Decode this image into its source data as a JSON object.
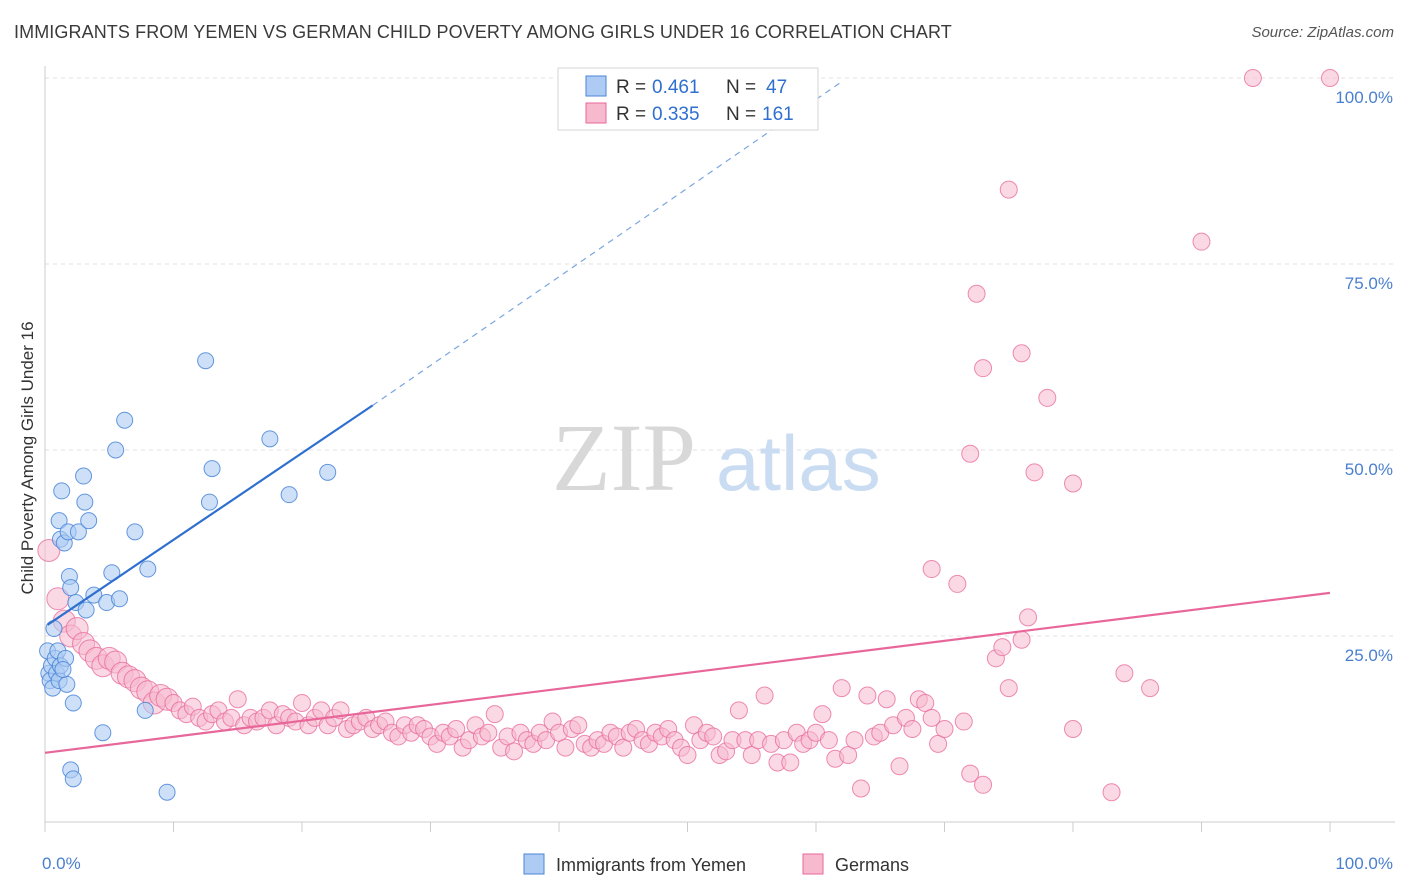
{
  "title": "IMMIGRANTS FROM YEMEN VS GERMAN CHILD POVERTY AMONG GIRLS UNDER 16 CORRELATION CHART",
  "source": "Source: ZipAtlas.com",
  "watermark": {
    "zip": "ZIP",
    "atlas": "atlas"
  },
  "colors": {
    "blue": "#4a86d8",
    "blue_fill": "#aeccf3",
    "pink": "#e8679a",
    "pink_fill": "#f6b9cd",
    "tick": "#4a7fcf"
  },
  "legend": {
    "r_label": "R =",
    "n_label": "N =",
    "rows": [
      {
        "r": "0.461",
        "n": "47"
      },
      {
        "r": "0.335",
        "n": "161"
      }
    ]
  },
  "chart_data": {
    "type": "scatter",
    "title": "IMMIGRANTS FROM YEMEN VS GERMAN CHILD POVERTY AMONG GIRLS UNDER 16 CORRELATION CHART",
    "xlabel": "",
    "ylabel": "Child Poverty Among Girls Under 16",
    "xlim": [
      0,
      100
    ],
    "ylim": [
      0,
      100
    ],
    "x_tick_labels": [
      "0.0%",
      "100.0%"
    ],
    "y_tick_labels": [
      "25.0%",
      "50.0%",
      "75.0%",
      "100.0%"
    ],
    "y_ticks": [
      25,
      50,
      75,
      100
    ],
    "grid": true,
    "legend_placement": "top-center",
    "series": [
      {
        "name": "Immigrants from Yemen",
        "color": "#4a86d8",
        "trend": {
          "x0": 0.2,
          "y0": 26.5,
          "x1": 25.5,
          "y1": 56.0,
          "x_dash_end": 62.0,
          "y_dash_end": 99.5
        },
        "points": [
          [
            0.2,
            23
          ],
          [
            0.3,
            20
          ],
          [
            0.4,
            19
          ],
          [
            0.5,
            21
          ],
          [
            0.6,
            18
          ],
          [
            0.8,
            22
          ],
          [
            0.9,
            20
          ],
          [
            1.0,
            23
          ],
          [
            1.1,
            19
          ],
          [
            1.2,
            21
          ],
          [
            0.7,
            26
          ],
          [
            1.1,
            40.5
          ],
          [
            1.2,
            38
          ],
          [
            1.3,
            44.5
          ],
          [
            1.5,
            37.5
          ],
          [
            1.6,
            22
          ],
          [
            1.7,
            18.5
          ],
          [
            1.8,
            39
          ],
          [
            1.9,
            33
          ],
          [
            2.0,
            31.5
          ],
          [
            2.2,
            16
          ],
          [
            2.4,
            29.5
          ],
          [
            2.6,
            39
          ],
          [
            3.0,
            46.5
          ],
          [
            3.1,
            43
          ],
          [
            3.2,
            28.5
          ],
          [
            3.4,
            40.5
          ],
          [
            3.8,
            30.5
          ],
          [
            4.5,
            12
          ],
          [
            4.8,
            29.5
          ],
          [
            5.2,
            33.5
          ],
          [
            5.5,
            50
          ],
          [
            5.8,
            30
          ],
          [
            6.2,
            54
          ],
          [
            7.0,
            39
          ],
          [
            7.8,
            15
          ],
          [
            8.0,
            34
          ],
          [
            9.5,
            4
          ],
          [
            12.5,
            62
          ],
          [
            12.8,
            43
          ],
          [
            13.0,
            47.5
          ],
          [
            17.5,
            51.5
          ],
          [
            19,
            44
          ],
          [
            22,
            47
          ],
          [
            2,
            7
          ],
          [
            2.2,
            5.8
          ],
          [
            1.4,
            20.5
          ]
        ]
      },
      {
        "name": "Germans",
        "color": "#e8679a",
        "trend": {
          "x0": 0,
          "y0": 9.3,
          "x1": 100,
          "y1": 30.8
        },
        "points": [
          [
            0.3,
            36.5
          ],
          [
            1,
            30
          ],
          [
            1.5,
            27
          ],
          [
            2,
            25
          ],
          [
            2.5,
            26
          ],
          [
            3,
            24
          ],
          [
            3.5,
            23
          ],
          [
            4,
            22
          ],
          [
            4.5,
            21
          ],
          [
            5,
            22
          ],
          [
            5.5,
            21.5
          ],
          [
            6,
            20
          ],
          [
            6.5,
            19.5
          ],
          [
            7,
            19
          ],
          [
            7.5,
            18
          ],
          [
            8,
            17.5
          ],
          [
            8.5,
            16
          ],
          [
            9,
            17
          ],
          [
            9.5,
            16.5
          ],
          [
            10,
            16
          ],
          [
            10.5,
            15
          ],
          [
            11,
            14.5
          ],
          [
            11.5,
            15.5
          ],
          [
            12,
            14
          ],
          [
            12.5,
            13.5
          ],
          [
            13,
            14.5
          ],
          [
            13.5,
            15
          ],
          [
            14,
            13.5
          ],
          [
            14.5,
            14
          ],
          [
            15,
            16.5
          ],
          [
            15.5,
            13
          ],
          [
            16,
            14
          ],
          [
            16.5,
            13.5
          ],
          [
            17,
            14
          ],
          [
            17.5,
            15
          ],
          [
            18,
            13
          ],
          [
            18.5,
            14.5
          ],
          [
            19,
            14
          ],
          [
            19.5,
            13.5
          ],
          [
            20,
            16
          ],
          [
            20.5,
            13
          ],
          [
            21,
            14
          ],
          [
            21.5,
            15
          ],
          [
            22,
            13
          ],
          [
            22.5,
            14
          ],
          [
            23,
            15
          ],
          [
            23.5,
            12.5
          ],
          [
            24,
            13
          ],
          [
            24.5,
            13.5
          ],
          [
            25,
            14
          ],
          [
            25.5,
            12.5
          ],
          [
            26,
            13
          ],
          [
            26.5,
            13.5
          ],
          [
            27,
            12
          ],
          [
            27.5,
            11.5
          ],
          [
            28,
            13
          ],
          [
            28.5,
            12
          ],
          [
            29,
            13
          ],
          [
            29.5,
            12.5
          ],
          [
            30,
            11.5
          ],
          [
            30.5,
            10.5
          ],
          [
            31,
            12
          ],
          [
            31.5,
            11.5
          ],
          [
            32,
            12.5
          ],
          [
            32.5,
            10
          ],
          [
            33,
            11
          ],
          [
            33.5,
            13
          ],
          [
            34,
            11.5
          ],
          [
            34.5,
            12
          ],
          [
            35,
            14.5
          ],
          [
            35.5,
            10
          ],
          [
            36,
            11.5
          ],
          [
            36.5,
            9.5
          ],
          [
            37,
            12
          ],
          [
            37.5,
            11
          ],
          [
            38,
            10.5
          ],
          [
            38.5,
            12
          ],
          [
            39,
            11
          ],
          [
            39.5,
            13.5
          ],
          [
            40,
            12
          ],
          [
            40.5,
            10
          ],
          [
            41,
            12.5
          ],
          [
            41.5,
            13
          ],
          [
            42,
            10.5
          ],
          [
            42.5,
            10
          ],
          [
            43,
            11
          ],
          [
            43.5,
            10.5
          ],
          [
            44,
            12
          ],
          [
            44.5,
            11.5
          ],
          [
            45,
            10
          ],
          [
            45.5,
            12
          ],
          [
            46,
            12.5
          ],
          [
            46.5,
            11
          ],
          [
            47,
            10.5
          ],
          [
            47.5,
            12
          ],
          [
            48,
            11.5
          ],
          [
            48.5,
            12.5
          ],
          [
            49,
            11
          ],
          [
            49.5,
            10
          ],
          [
            50,
            9
          ],
          [
            50.5,
            13
          ],
          [
            51,
            11
          ],
          [
            51.5,
            12
          ],
          [
            52,
            11.5
          ],
          [
            52.5,
            9
          ],
          [
            53,
            9.5
          ],
          [
            53.5,
            11
          ],
          [
            54,
            15
          ],
          [
            54.5,
            11
          ],
          [
            55,
            9
          ],
          [
            55.5,
            11
          ],
          [
            56,
            17
          ],
          [
            56.5,
            10.5
          ],
          [
            57,
            8
          ],
          [
            57.5,
            11
          ],
          [
            58,
            8
          ],
          [
            58.5,
            12
          ],
          [
            59,
            10.5
          ],
          [
            59.5,
            11
          ],
          [
            60,
            12
          ],
          [
            60.5,
            14.5
          ],
          [
            61,
            11
          ],
          [
            61.5,
            8.5
          ],
          [
            62,
            18
          ],
          [
            62.5,
            9
          ],
          [
            63,
            11
          ],
          [
            63.5,
            4.5
          ],
          [
            64,
            17
          ],
          [
            64.5,
            11.5
          ],
          [
            65,
            12
          ],
          [
            65.5,
            16.5
          ],
          [
            66,
            13
          ],
          [
            66.5,
            7.5
          ],
          [
            67,
            14
          ],
          [
            67.5,
            12.5
          ],
          [
            68,
            16.5
          ],
          [
            68.5,
            16
          ],
          [
            69,
            14
          ],
          [
            69.5,
            10.5
          ],
          [
            70,
            12.5
          ],
          [
            69,
            34
          ],
          [
            71,
            32
          ],
          [
            72,
            6.5
          ],
          [
            73,
            5
          ],
          [
            74,
            22
          ],
          [
            74.5,
            23.5
          ],
          [
            75,
            18
          ],
          [
            76,
            24.5
          ],
          [
            76.5,
            27.5
          ],
          [
            77,
            47
          ],
          [
            78,
            57
          ],
          [
            80,
            12.5
          ],
          [
            80,
            45.5
          ],
          [
            83,
            4
          ],
          [
            84,
            20
          ],
          [
            86,
            18
          ],
          [
            72,
            49.5
          ],
          [
            72.5,
            71
          ],
          [
            73,
            61
          ],
          [
            75,
            85
          ],
          [
            76,
            63
          ],
          [
            90,
            78
          ],
          [
            94,
            100
          ],
          [
            100,
            100
          ],
          [
            71.5,
            13.5
          ]
        ]
      }
    ]
  },
  "bottom_legend": [
    {
      "label": "Immigrants from Yemen"
    },
    {
      "label": "Germans"
    }
  ]
}
